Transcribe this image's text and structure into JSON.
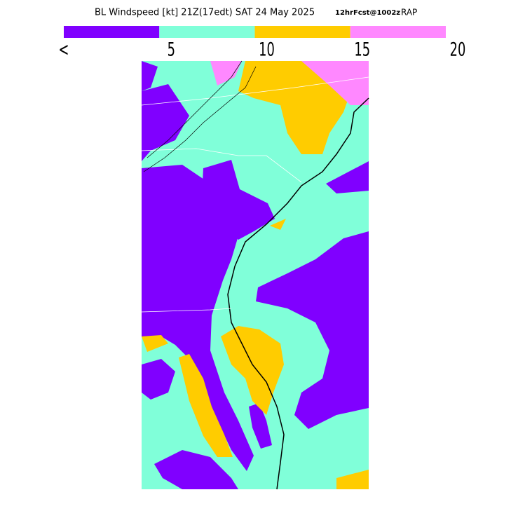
{
  "header": {
    "title": "BL Windspeed [kt] 21Z(17edt) SAT 24 May 2025",
    "forecast": "12hrFcst@1002z",
    "model": "RAP"
  },
  "legend": {
    "colors": [
      "#8000ff",
      "#80ffd9",
      "#ffcc00",
      "#ff88ff"
    ],
    "labels": [
      "<",
      "5",
      "10",
      "15",
      "20"
    ]
  }
}
